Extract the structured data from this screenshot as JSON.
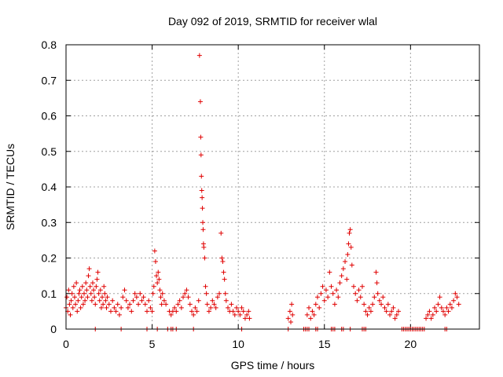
{
  "chart_data": {
    "type": "scatter",
    "title": "Day 092 of 2019, SRMTID for receiver wlal",
    "xlabel": "GPS time / hours",
    "ylabel": "SRMTID / TECUs",
    "xlim": [
      0,
      24
    ],
    "ylim": [
      0,
      0.8
    ],
    "xticks": [
      0,
      5,
      10,
      15,
      20
    ],
    "yticks": [
      0,
      0.1,
      0.2,
      0.3,
      0.4,
      0.5,
      0.6,
      0.7,
      0.8
    ],
    "grid": true,
    "marker": "plus",
    "color": "#e00000",
    "series": [
      {
        "name": "SRMTID",
        "points": [
          [
            0.0,
            0.06
          ],
          [
            0.05,
            0.09
          ],
          [
            0.1,
            0.05
          ],
          [
            0.15,
            0.11
          ],
          [
            0.2,
            0.07
          ],
          [
            0.25,
            0.04
          ],
          [
            0.3,
            0.08
          ],
          [
            0.35,
            0.1
          ],
          [
            0.4,
            0.06
          ],
          [
            0.45,
            0.12
          ],
          [
            0.5,
            0.09
          ],
          [
            0.55,
            0.07
          ],
          [
            0.6,
            0.13
          ],
          [
            0.65,
            0.05
          ],
          [
            0.7,
            0.08
          ],
          [
            0.75,
            0.1
          ],
          [
            0.8,
            0.11
          ],
          [
            0.85,
            0.06
          ],
          [
            0.9,
            0.09
          ],
          [
            0.95,
            0.12
          ],
          [
            1.0,
            0.07
          ],
          [
            1.05,
            0.1
          ],
          [
            1.1,
            0.08
          ],
          [
            1.15,
            0.13
          ],
          [
            1.2,
            0.11
          ],
          [
            1.25,
            0.09
          ],
          [
            1.3,
            0.15
          ],
          [
            1.35,
            0.17
          ],
          [
            1.4,
            0.12
          ],
          [
            1.45,
            0.1
          ],
          [
            1.5,
            0.08
          ],
          [
            1.55,
            0.13
          ],
          [
            1.6,
            0.11
          ],
          [
            1.65,
            0.09
          ],
          [
            1.7,
            0.07
          ],
          [
            1.75,
            0.12
          ],
          [
            1.8,
            0.14
          ],
          [
            1.85,
            0.16
          ],
          [
            1.9,
            0.1
          ],
          [
            1.95,
            0.08
          ],
          [
            2.0,
            0.11
          ],
          [
            2.05,
            0.06
          ],
          [
            2.1,
            0.09
          ],
          [
            2.15,
            0.07
          ],
          [
            2.2,
            0.12
          ],
          [
            2.25,
            0.1
          ],
          [
            2.3,
            0.08
          ],
          [
            2.35,
            0.06
          ],
          [
            2.4,
            0.09
          ],
          [
            2.5,
            0.07
          ],
          [
            2.6,
            0.05
          ],
          [
            2.7,
            0.08
          ],
          [
            2.8,
            0.06
          ],
          [
            2.9,
            0.05
          ],
          [
            3.0,
            0.07
          ],
          [
            3.1,
            0.04
          ],
          [
            3.2,
            0.06
          ],
          [
            3.3,
            0.09
          ],
          [
            3.4,
            0.11
          ],
          [
            3.5,
            0.08
          ],
          [
            3.6,
            0.06
          ],
          [
            3.7,
            0.07
          ],
          [
            3.8,
            0.05
          ],
          [
            3.9,
            0.08
          ],
          [
            4.0,
            0.1
          ],
          [
            4.1,
            0.09
          ],
          [
            4.2,
            0.07
          ],
          [
            4.3,
            0.1
          ],
          [
            4.4,
            0.08
          ],
          [
            4.5,
            0.09
          ],
          [
            4.6,
            0.07
          ],
          [
            4.7,
            0.05
          ],
          [
            4.8,
            0.08
          ],
          [
            4.9,
            0.06
          ],
          [
            5.0,
            0.05
          ],
          [
            5.05,
            0.1
          ],
          [
            5.1,
            0.12
          ],
          [
            5.15,
            0.22
          ],
          [
            5.2,
            0.19
          ],
          [
            5.25,
            0.15
          ],
          [
            5.3,
            0.13
          ],
          [
            5.35,
            0.16
          ],
          [
            5.4,
            0.14
          ],
          [
            5.45,
            0.11
          ],
          [
            5.5,
            0.09
          ],
          [
            5.55,
            0.07
          ],
          [
            5.6,
            0.1
          ],
          [
            5.7,
            0.08
          ],
          [
            5.8,
            0.07
          ],
          [
            6.0,
            0.05
          ],
          [
            6.1,
            0.04
          ],
          [
            6.2,
            0.05
          ],
          [
            6.3,
            0.06
          ],
          [
            6.4,
            0.05
          ],
          [
            6.5,
            0.07
          ],
          [
            6.6,
            0.08
          ],
          [
            6.7,
            0.06
          ],
          [
            6.8,
            0.09
          ],
          [
            6.9,
            0.1
          ],
          [
            7.0,
            0.11
          ],
          [
            7.1,
            0.09
          ],
          [
            7.2,
            0.07
          ],
          [
            7.3,
            0.05
          ],
          [
            7.4,
            0.04
          ],
          [
            7.5,
            0.06
          ],
          [
            7.6,
            0.05
          ],
          [
            7.7,
            0.08
          ],
          [
            7.75,
            0.77
          ],
          [
            7.8,
            0.64
          ],
          [
            7.82,
            0.54
          ],
          [
            7.84,
            0.49
          ],
          [
            7.86,
            0.43
          ],
          [
            7.88,
            0.39
          ],
          [
            7.9,
            0.37
          ],
          [
            7.92,
            0.34
          ],
          [
            7.94,
            0.3
          ],
          [
            7.96,
            0.28
          ],
          [
            7.98,
            0.24
          ],
          [
            8.0,
            0.23
          ],
          [
            8.05,
            0.2
          ],
          [
            8.1,
            0.12
          ],
          [
            8.15,
            0.1
          ],
          [
            8.2,
            0.07
          ],
          [
            8.3,
            0.05
          ],
          [
            8.4,
            0.06
          ],
          [
            8.5,
            0.08
          ],
          [
            8.6,
            0.07
          ],
          [
            8.7,
            0.06
          ],
          [
            8.8,
            0.09
          ],
          [
            8.9,
            0.1
          ],
          [
            9.0,
            0.27
          ],
          [
            9.05,
            0.2
          ],
          [
            9.1,
            0.19
          ],
          [
            9.15,
            0.16
          ],
          [
            9.2,
            0.14
          ],
          [
            9.25,
            0.1
          ],
          [
            9.3,
            0.08
          ],
          [
            9.4,
            0.06
          ],
          [
            9.5,
            0.05
          ],
          [
            9.6,
            0.07
          ],
          [
            9.7,
            0.05
          ],
          [
            9.8,
            0.04
          ],
          [
            9.9,
            0.06
          ],
          [
            10.0,
            0.05
          ],
          [
            10.1,
            0.04
          ],
          [
            10.2,
            0.06
          ],
          [
            10.3,
            0.05
          ],
          [
            10.4,
            0.03
          ],
          [
            10.5,
            0.04
          ],
          [
            10.6,
            0.05
          ],
          [
            10.65,
            0.03
          ],
          [
            12.9,
            0.03
          ],
          [
            13.0,
            0.05
          ],
          [
            13.05,
            0.02
          ],
          [
            13.1,
            0.07
          ],
          [
            13.15,
            0.04
          ],
          [
            14.0,
            0.04
          ],
          [
            14.1,
            0.06
          ],
          [
            14.2,
            0.03
          ],
          [
            14.3,
            0.05
          ],
          [
            14.4,
            0.04
          ],
          [
            14.5,
            0.07
          ],
          [
            14.6,
            0.09
          ],
          [
            14.7,
            0.06
          ],
          [
            14.8,
            0.1
          ],
          [
            14.9,
            0.12
          ],
          [
            15.0,
            0.08
          ],
          [
            15.1,
            0.11
          ],
          [
            15.2,
            0.09
          ],
          [
            15.3,
            0.16
          ],
          [
            15.4,
            0.12
          ],
          [
            15.5,
            0.1
          ],
          [
            15.6,
            0.07
          ],
          [
            15.7,
            0.11
          ],
          [
            15.8,
            0.09
          ],
          [
            15.9,
            0.13
          ],
          [
            16.0,
            0.15
          ],
          [
            16.1,
            0.17
          ],
          [
            16.2,
            0.19
          ],
          [
            16.3,
            0.14
          ],
          [
            16.35,
            0.21
          ],
          [
            16.4,
            0.24
          ],
          [
            16.45,
            0.27
          ],
          [
            16.5,
            0.28
          ],
          [
            16.55,
            0.23
          ],
          [
            16.6,
            0.18
          ],
          [
            16.7,
            0.12
          ],
          [
            16.8,
            0.1
          ],
          [
            16.9,
            0.08
          ],
          [
            17.0,
            0.11
          ],
          [
            17.1,
            0.09
          ],
          [
            17.2,
            0.12
          ],
          [
            17.3,
            0.07
          ],
          [
            17.4,
            0.05
          ],
          [
            17.5,
            0.04
          ],
          [
            17.6,
            0.06
          ],
          [
            17.7,
            0.05
          ],
          [
            17.8,
            0.07
          ],
          [
            17.9,
            0.09
          ],
          [
            18.0,
            0.16
          ],
          [
            18.05,
            0.13
          ],
          [
            18.1,
            0.1
          ],
          [
            18.2,
            0.08
          ],
          [
            18.3,
            0.07
          ],
          [
            18.4,
            0.09
          ],
          [
            18.5,
            0.06
          ],
          [
            18.6,
            0.05
          ],
          [
            18.7,
            0.07
          ],
          [
            18.8,
            0.04
          ],
          [
            18.9,
            0.05
          ],
          [
            19.0,
            0.06
          ],
          [
            19.1,
            0.03
          ],
          [
            19.2,
            0.04
          ],
          [
            19.3,
            0.05
          ],
          [
            20.9,
            0.03
          ],
          [
            21.0,
            0.04
          ],
          [
            21.1,
            0.05
          ],
          [
            21.2,
            0.03
          ],
          [
            21.3,
            0.04
          ],
          [
            21.4,
            0.06
          ],
          [
            21.5,
            0.05
          ],
          [
            21.6,
            0.07
          ],
          [
            21.7,
            0.09
          ],
          [
            21.8,
            0.06
          ],
          [
            21.9,
            0.05
          ],
          [
            22.0,
            0.04
          ],
          [
            22.1,
            0.06
          ],
          [
            22.2,
            0.05
          ],
          [
            22.3,
            0.07
          ],
          [
            22.4,
            0.06
          ],
          [
            22.5,
            0.08
          ],
          [
            22.6,
            0.1
          ],
          [
            22.7,
            0.09
          ],
          [
            22.8,
            0.07
          ],
          [
            1.7,
            0.0
          ],
          [
            3.2,
            0.0
          ],
          [
            4.7,
            0.0
          ],
          [
            5.3,
            0.0
          ],
          [
            5.9,
            0.0
          ],
          [
            6.1,
            0.0
          ],
          [
            6.2,
            0.0
          ],
          [
            6.4,
            0.0
          ],
          [
            7.4,
            0.0
          ],
          [
            10.2,
            0.0
          ],
          [
            12.9,
            0.0
          ],
          [
            13.8,
            0.0
          ],
          [
            13.9,
            0.0
          ],
          [
            14.0,
            0.0
          ],
          [
            14.1,
            0.0
          ],
          [
            14.5,
            0.0
          ],
          [
            14.6,
            0.0
          ],
          [
            15.4,
            0.0
          ],
          [
            15.5,
            0.0
          ],
          [
            15.6,
            0.0
          ],
          [
            16.0,
            0.0
          ],
          [
            16.1,
            0.0
          ],
          [
            16.5,
            0.0
          ],
          [
            17.2,
            0.0
          ],
          [
            17.3,
            0.0
          ],
          [
            17.4,
            0.0
          ],
          [
            19.5,
            0.0
          ],
          [
            19.6,
            0.0
          ],
          [
            19.7,
            0.0
          ],
          [
            19.8,
            0.0
          ],
          [
            19.9,
            0.0
          ],
          [
            20.0,
            0.0
          ],
          [
            20.1,
            0.0
          ],
          [
            20.2,
            0.0
          ],
          [
            20.3,
            0.0
          ],
          [
            20.4,
            0.0
          ],
          [
            20.5,
            0.0
          ],
          [
            20.6,
            0.0
          ],
          [
            20.7,
            0.0
          ],
          [
            20.8,
            0.0
          ],
          [
            22.0,
            0.0
          ],
          [
            22.1,
            0.0
          ]
        ]
      }
    ]
  }
}
